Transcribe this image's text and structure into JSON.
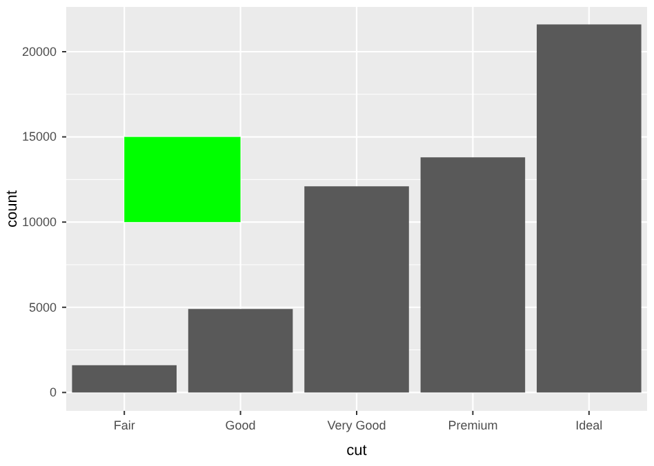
{
  "chart_data": {
    "type": "bar",
    "xlabel": "cut",
    "ylabel": "count",
    "categories": [
      "Fair",
      "Good",
      "Very Good",
      "Premium",
      "Ideal"
    ],
    "values": [
      1600,
      4900,
      12100,
      13800,
      21600
    ],
    "color": "#595959",
    "ylim": [
      -1078,
      22629
    ],
    "yticks": [
      0,
      5000,
      10000,
      15000,
      20000
    ],
    "grid": true,
    "bands": [
      {
        "axis": "y",
        "from": 10000,
        "to": 15000,
        "color": "#00ff00"
      }
    ]
  }
}
